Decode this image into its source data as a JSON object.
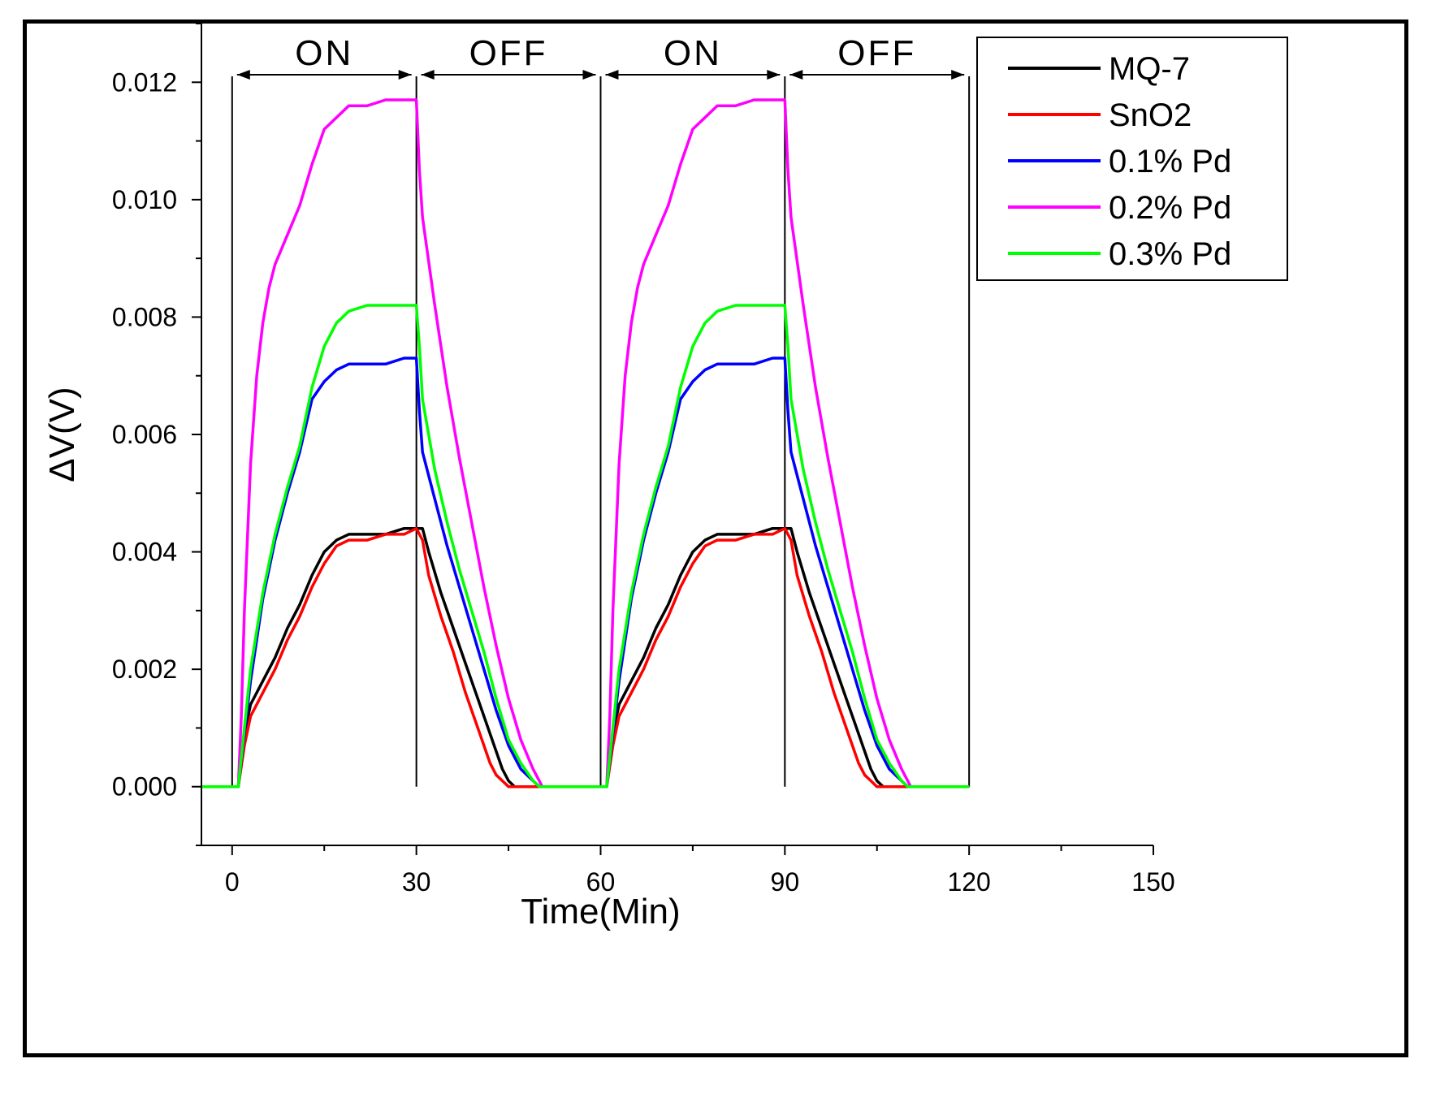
{
  "chart_data": {
    "type": "line",
    "title": "",
    "xlabel": "Time(Min)",
    "ylabel": "ΔV(V)",
    "xlim": [
      -5,
      150
    ],
    "ylim": [
      -0.001,
      0.013
    ],
    "x_ticks": [
      0,
      30,
      60,
      90,
      120,
      150
    ],
    "x_tick_labels": [
      "0",
      "30",
      "60",
      "90",
      "120",
      "150"
    ],
    "y_ticks": [
      0,
      0.002,
      0.004,
      0.006,
      0.008,
      0.01,
      0.012
    ],
    "y_tick_labels": [
      "0.000",
      "0.002",
      "0.004",
      "0.006",
      "0.008",
      "0.010",
      "0.012"
    ],
    "legend_position": "top-right",
    "phases": [
      {
        "label": "ON",
        "start": 0,
        "end": 30
      },
      {
        "label": "OFF",
        "start": 30,
        "end": 60
      },
      {
        "label": "ON",
        "start": 60,
        "end": 90
      },
      {
        "label": "OFF",
        "start": 90,
        "end": 120
      }
    ],
    "series": [
      {
        "name": "MQ-7",
        "color": "#000000",
        "x": [
          -5,
          1,
          2,
          3,
          5,
          7,
          9,
          11,
          13,
          15,
          17,
          19,
          22,
          25,
          28,
          30,
          31,
          32,
          34,
          36,
          38,
          40,
          42,
          44,
          45,
          46,
          48,
          50,
          55,
          60,
          61,
          62,
          63,
          65,
          67,
          69,
          71,
          73,
          75,
          77,
          79,
          82,
          85,
          88,
          90,
          91,
          92,
          94,
          96,
          98,
          100,
          102,
          104,
          105,
          106,
          108,
          110,
          115,
          120
        ],
        "y": [
          0,
          0,
          0.0009,
          0.0014,
          0.0018,
          0.0022,
          0.0027,
          0.0031,
          0.0036,
          0.004,
          0.0042,
          0.0043,
          0.0043,
          0.0043,
          0.0044,
          0.0044,
          0.0044,
          0.004,
          0.0033,
          0.0027,
          0.0021,
          0.0015,
          0.0009,
          0.0003,
          0.0001,
          0,
          0,
          0,
          0,
          0,
          0,
          0.0009,
          0.0014,
          0.0018,
          0.0022,
          0.0027,
          0.0031,
          0.0036,
          0.004,
          0.0042,
          0.0043,
          0.0043,
          0.0043,
          0.0044,
          0.0044,
          0.0044,
          0.004,
          0.0033,
          0.0027,
          0.0021,
          0.0015,
          0.0009,
          0.0003,
          0.0001,
          0,
          0,
          0,
          0,
          0
        ]
      },
      {
        "name": "SnO2",
        "color": "#ff0000",
        "x": [
          -5,
          1,
          2,
          3,
          5,
          7,
          9,
          11,
          13,
          15,
          17,
          19,
          22,
          25,
          28,
          30,
          31,
          32,
          34,
          36,
          38,
          40,
          42,
          43,
          44,
          45,
          48,
          50,
          55,
          60,
          61,
          62,
          63,
          65,
          67,
          69,
          71,
          73,
          75,
          77,
          79,
          82,
          85,
          88,
          90,
          91,
          92,
          94,
          96,
          98,
          100,
          102,
          103,
          104,
          105,
          108,
          110,
          115,
          120
        ],
        "y": [
          0,
          0,
          0.0007,
          0.0012,
          0.0016,
          0.002,
          0.0025,
          0.0029,
          0.0034,
          0.0038,
          0.0041,
          0.0042,
          0.0042,
          0.0043,
          0.0043,
          0.0044,
          0.0042,
          0.0036,
          0.0029,
          0.0023,
          0.0016,
          0.001,
          0.0004,
          0.0002,
          0.0001,
          0,
          0,
          0,
          0,
          0,
          0,
          0.0007,
          0.0012,
          0.0016,
          0.002,
          0.0025,
          0.0029,
          0.0034,
          0.0038,
          0.0041,
          0.0042,
          0.0042,
          0.0043,
          0.0043,
          0.0044,
          0.0042,
          0.0036,
          0.0029,
          0.0023,
          0.0016,
          0.001,
          0.0004,
          0.0002,
          0.0001,
          0,
          0,
          0,
          0,
          0
        ]
      },
      {
        "name": "0.1% Pd",
        "color": "#0000ff",
        "x": [
          -5,
          1,
          2,
          3,
          5,
          7,
          9,
          11,
          13,
          15,
          17,
          19,
          22,
          25,
          28,
          30,
          30.5,
          31,
          33,
          35,
          37,
          39,
          41,
          43,
          45,
          47,
          48,
          49,
          50,
          55,
          60,
          61,
          62,
          63,
          65,
          67,
          69,
          71,
          73,
          75,
          77,
          79,
          82,
          85,
          88,
          90,
          90.5,
          91,
          93,
          95,
          97,
          99,
          101,
          103,
          105,
          107,
          108,
          109,
          110,
          115,
          120
        ],
        "y": [
          0,
          0,
          0.0009,
          0.0018,
          0.0032,
          0.0042,
          0.005,
          0.0057,
          0.0066,
          0.0069,
          0.0071,
          0.0072,
          0.0072,
          0.0072,
          0.0073,
          0.0073,
          0.0064,
          0.0057,
          0.0049,
          0.0041,
          0.0034,
          0.0027,
          0.002,
          0.0013,
          0.0007,
          0.0003,
          0.0002,
          0.0001,
          0,
          0,
          0,
          0,
          0.0009,
          0.0018,
          0.0032,
          0.0042,
          0.005,
          0.0057,
          0.0066,
          0.0069,
          0.0071,
          0.0072,
          0.0072,
          0.0072,
          0.0073,
          0.0073,
          0.0064,
          0.0057,
          0.0049,
          0.0041,
          0.0034,
          0.0027,
          0.002,
          0.0013,
          0.0007,
          0.0003,
          0.0002,
          0.0001,
          0,
          0,
          0
        ]
      },
      {
        "name": "0.2% Pd",
        "color": "#ff00ff",
        "x": [
          -5,
          1,
          1.5,
          2,
          3,
          4,
          5,
          6,
          7,
          9,
          11,
          13,
          15,
          17,
          19,
          22,
          25,
          28,
          30,
          30.5,
          31,
          33,
          35,
          37,
          39,
          41,
          43,
          45,
          47,
          49,
          50.5,
          55,
          60,
          61,
          61.5,
          62,
          63,
          64,
          65,
          66,
          67,
          69,
          71,
          73,
          75,
          77,
          79,
          82,
          85,
          88,
          90,
          90.5,
          91,
          93,
          95,
          97,
          99,
          101,
          103,
          105,
          107,
          109,
          110.5,
          115,
          120
        ],
        "y": [
          0,
          0,
          0.0012,
          0.003,
          0.0055,
          0.007,
          0.0079,
          0.0085,
          0.0089,
          0.0094,
          0.0099,
          0.0106,
          0.0112,
          0.0114,
          0.0116,
          0.0116,
          0.0117,
          0.0117,
          0.0117,
          0.0105,
          0.0097,
          0.0082,
          0.0068,
          0.0056,
          0.0045,
          0.0034,
          0.0024,
          0.0015,
          0.0008,
          0.0003,
          0,
          0,
          0,
          0,
          0.0012,
          0.003,
          0.0055,
          0.007,
          0.0079,
          0.0085,
          0.0089,
          0.0094,
          0.0099,
          0.0106,
          0.0112,
          0.0114,
          0.0116,
          0.0116,
          0.0117,
          0.0117,
          0.0117,
          0.0105,
          0.0097,
          0.0082,
          0.0068,
          0.0056,
          0.0045,
          0.0034,
          0.0024,
          0.0015,
          0.0008,
          0.0003,
          0,
          0,
          0
        ]
      },
      {
        "name": "0.3% Pd",
        "color": "#00ff00",
        "x": [
          -5,
          1,
          2,
          3,
          5,
          7,
          9,
          11,
          13,
          15,
          17,
          19,
          22,
          25,
          28,
          30,
          30.5,
          31,
          33,
          35,
          37,
          39,
          41,
          43,
          45,
          47,
          49,
          50,
          55,
          60,
          61,
          62,
          63,
          65,
          67,
          69,
          71,
          73,
          75,
          77,
          79,
          82,
          85,
          88,
          90,
          90.5,
          91,
          93,
          95,
          97,
          99,
          101,
          103,
          105,
          107,
          109,
          110,
          115,
          120
        ],
        "y": [
          0,
          0,
          0.001,
          0.002,
          0.0033,
          0.0043,
          0.0051,
          0.0058,
          0.0068,
          0.0075,
          0.0079,
          0.0081,
          0.0082,
          0.0082,
          0.0082,
          0.0082,
          0.0075,
          0.0066,
          0.0054,
          0.0045,
          0.0037,
          0.003,
          0.0023,
          0.0015,
          0.0008,
          0.0004,
          0.0001,
          0,
          0,
          0,
          0,
          0.001,
          0.002,
          0.0033,
          0.0043,
          0.0051,
          0.0058,
          0.0068,
          0.0075,
          0.0079,
          0.0081,
          0.0082,
          0.0082,
          0.0082,
          0.0082,
          0.0075,
          0.0066,
          0.0054,
          0.0045,
          0.0037,
          0.003,
          0.0023,
          0.0015,
          0.0008,
          0.0004,
          0.0001,
          0,
          0,
          0
        ]
      }
    ]
  }
}
